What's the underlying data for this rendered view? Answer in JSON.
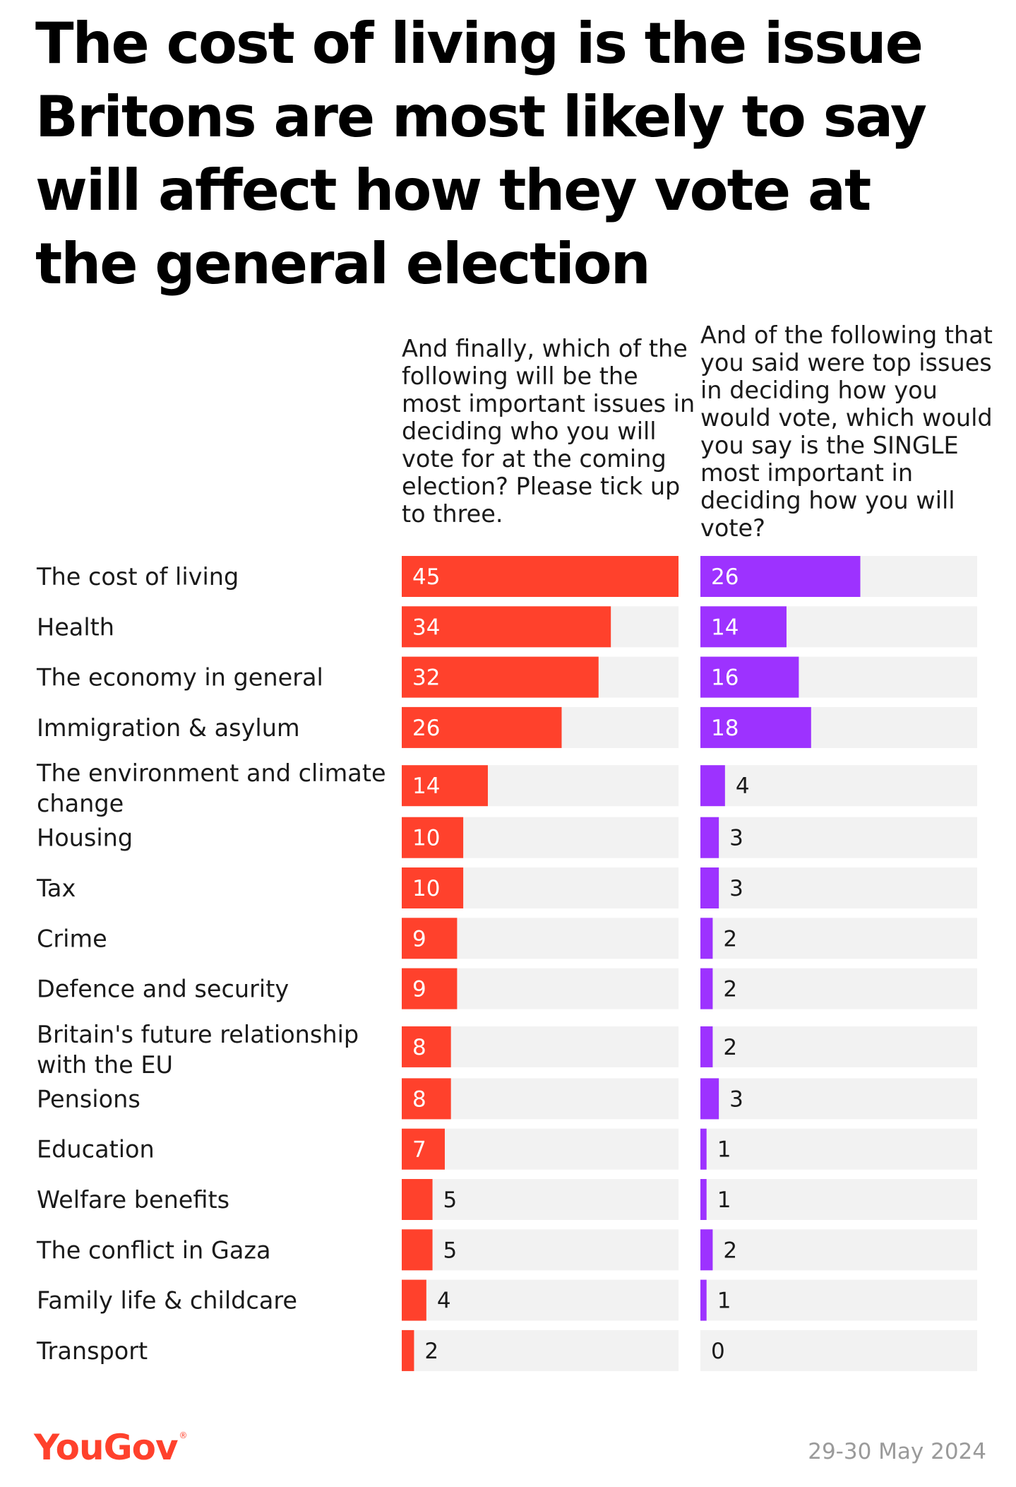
{
  "title": "The cost of living is the issue Britons are most likely to say will affect how they vote at the general election",
  "colors": {
    "series1": "#ff412c",
    "series2": "#9d32ff",
    "track": "#f2f2f2"
  },
  "chart_data": {
    "type": "bar",
    "orientation": "horizontal",
    "unit": "%",
    "xlim": [
      0,
      45
    ],
    "categories": [
      "The cost of living",
      "Health",
      "The economy in general",
      "Immigration & asylum",
      "The environment and climate change",
      "Housing",
      "Tax",
      "Crime",
      "Defence and security",
      "Britain's future relationship with the EU",
      "Pensions",
      "Education",
      "Welfare benefits",
      "The conflict in Gaza",
      "Family life & childcare",
      "Transport"
    ],
    "series": [
      {
        "name": "And finally, which of the following will be the most important issues in deciding who you will vote for at the coming election? Please tick up to three.",
        "values": [
          45,
          34,
          32,
          26,
          14,
          10,
          10,
          9,
          9,
          8,
          8,
          7,
          5,
          5,
          4,
          2
        ]
      },
      {
        "name": "And of the following that you said were top issues in deciding how you would vote, which would you say is the SINGLE most important in deciding how you will vote?",
        "values": [
          26,
          14,
          16,
          18,
          4,
          3,
          3,
          2,
          2,
          2,
          3,
          1,
          1,
          2,
          1,
          0
        ]
      }
    ]
  },
  "footer": {
    "logo": "YouGov",
    "logo_mark": "®",
    "date": "29-30 May 2024"
  }
}
